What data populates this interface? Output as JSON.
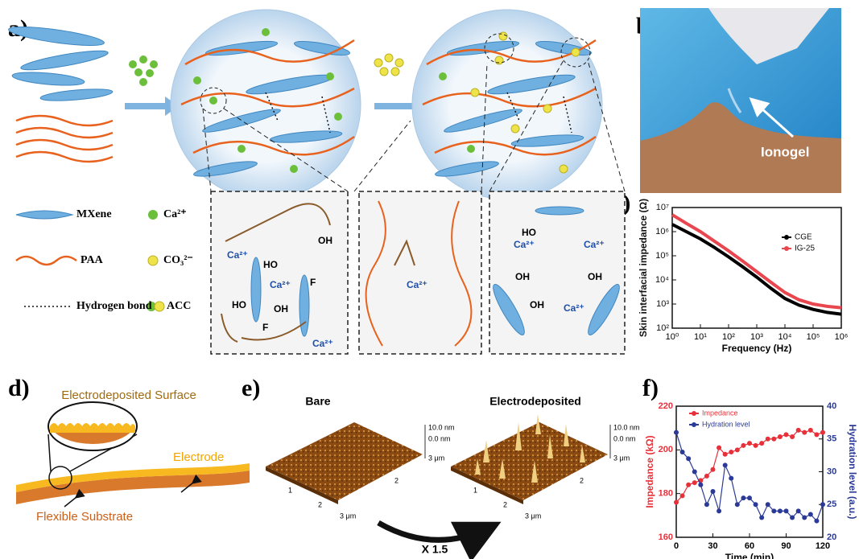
{
  "panel_labels": [
    "a)",
    "b)",
    "c)",
    "d)",
    "e)",
    "f)"
  ],
  "panel_a": {
    "legend": [
      "MXene",
      "Ca²⁺",
      "PAA",
      "CO₃²⁻",
      "Hydrogen bond",
      "ACC"
    ],
    "inset1": [
      "Ca²⁺",
      "HO",
      "Ca²⁺",
      "F",
      "HO",
      "OH",
      "F",
      "OH",
      "Ca²⁺"
    ],
    "inset2": [
      "Ca²⁺"
    ],
    "inset3": [
      "Ca²⁺",
      "Ca²⁺",
      "HO",
      "OH",
      "OH",
      "OH",
      "Ca²⁺"
    ]
  },
  "panel_b": {
    "label": "Ionogel"
  },
  "panel_d": {
    "labels": [
      "Electrodeposited Surface",
      "Electrode",
      "Flexible Substrate"
    ]
  },
  "panel_e": {
    "titles": [
      "Bare",
      "Electrodeposited"
    ],
    "scale_labels": [
      "10.0 nm",
      "0.0 nm",
      "3 μm"
    ],
    "axis_labels": [
      "1",
      "2",
      "3 μm",
      "2"
    ],
    "factor": "X 1.5"
  },
  "chart_data": [
    {
      "type": "line",
      "xlabel": "Frequency (Hz)",
      "ylabel": "Skin interfacial impedance (Ω)",
      "xscale": "log",
      "yscale": "log",
      "x": [
        1,
        3.16,
        10,
        31.6,
        100,
        316,
        1000,
        3162,
        10000,
        31623,
        100000,
        316228,
        1000000
      ],
      "series": [
        {
          "name": "CGE",
          "color": "#000000",
          "values": [
            2000000,
            1000000,
            500000,
            220000,
            90000,
            35000,
            13000,
            4500,
            1700,
            900,
            600,
            450,
            380
          ]
        },
        {
          "name": "IG-25",
          "color": "#e8474f",
          "values": [
            5000000,
            2200000,
            1000000,
            400000,
            160000,
            60000,
            22000,
            8000,
            3000,
            1500,
            1000,
            800,
            700
          ]
        }
      ],
      "xlim": [
        1,
        1000000
      ],
      "xticks": [
        {
          "value": 1,
          "label": "10⁰"
        },
        {
          "value": 10,
          "label": "10¹"
        },
        {
          "value": 100,
          "label": "10²"
        },
        {
          "value": 1000,
          "label": "10³"
        },
        {
          "value": 10000,
          "label": "10⁴"
        },
        {
          "value": 100000,
          "label": "10⁵"
        },
        {
          "value": 1000000,
          "label": "10⁶"
        }
      ],
      "ylim": [
        100,
        10000000
      ],
      "yticks": [
        {
          "value": 100,
          "label": "10²"
        },
        {
          "value": 1000,
          "label": "10³"
        },
        {
          "value": 10000,
          "label": "10⁴"
        },
        {
          "value": 100000,
          "label": "10⁵"
        },
        {
          "value": 1000000,
          "label": "10⁶"
        },
        {
          "value": 10000000,
          "label": "10⁷"
        }
      ]
    },
    {
      "type": "line",
      "xlabel": "Time (min)",
      "ylabel": "Impedance (kΩ)",
      "y2label": "Hydration level (a.u.)",
      "x": [
        0,
        5,
        10,
        15,
        20,
        25,
        30,
        35,
        40,
        45,
        50,
        55,
        60,
        65,
        70,
        75,
        80,
        85,
        90,
        95,
        100,
        105,
        110,
        115,
        120
      ],
      "series": [
        {
          "name": "Impedance",
          "color": "#e8303a",
          "values": [
            176,
            179,
            184,
            185,
            186,
            188,
            191,
            201,
            198,
            199,
            200,
            202,
            203,
            202,
            203,
            205,
            205,
            206,
            207,
            206,
            209,
            208,
            209,
            207,
            208
          ]
        },
        {
          "name": "Hydration level",
          "color": "#2b3a96",
          "axis": "y2",
          "values": [
            36,
            33,
            32,
            30,
            28,
            25,
            27,
            24,
            31,
            29,
            25,
            26,
            26,
            25,
            23,
            25,
            24,
            24,
            24,
            23,
            24,
            23,
            23.5,
            22.5,
            25
          ]
        }
      ],
      "xlim": [
        0,
        120
      ],
      "xticks": [
        0,
        30,
        60,
        90,
        120
      ],
      "ylim": [
        160,
        220
      ],
      "yticks": [
        160,
        180,
        200,
        220
      ],
      "y2lim": [
        20,
        40
      ],
      "y2ticks": [
        20,
        25,
        30,
        35,
        40
      ]
    }
  ]
}
